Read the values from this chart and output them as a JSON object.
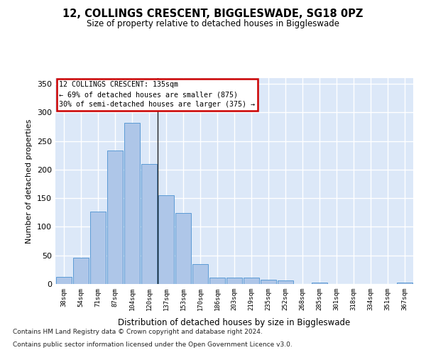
{
  "title": "12, COLLINGS CRESCENT, BIGGLESWADE, SG18 0PZ",
  "subtitle": "Size of property relative to detached houses in Biggleswade",
  "xlabel": "Distribution of detached houses by size in Biggleswade",
  "ylabel": "Number of detached properties",
  "bar_labels": [
    "38sqm",
    "54sqm",
    "71sqm",
    "87sqm",
    "104sqm",
    "120sqm",
    "137sqm",
    "153sqm",
    "170sqm",
    "186sqm",
    "203sqm",
    "219sqm",
    "235sqm",
    "252sqm",
    "268sqm",
    "285sqm",
    "301sqm",
    "318sqm",
    "334sqm",
    "351sqm",
    "367sqm"
  ],
  "bar_values": [
    12,
    46,
    127,
    233,
    282,
    210,
    155,
    124,
    35,
    11,
    11,
    11,
    8,
    6,
    0,
    3,
    0,
    0,
    0,
    0,
    3
  ],
  "bar_color": "#aec6e8",
  "bar_edge_color": "#5b9bd5",
  "background_color": "#dce8f8",
  "grid_color": "#ffffff",
  "annotation_text": "12 COLLINGS CRESCENT: 135sqm\n← 69% of detached houses are smaller (875)\n30% of semi-detached houses are larger (375) →",
  "annotation_box_color": "#ffffff",
  "annotation_box_edge_color": "#cc0000",
  "property_line_x": 5.5,
  "footnote1": "Contains HM Land Registry data © Crown copyright and database right 2024.",
  "footnote2": "Contains public sector information licensed under the Open Government Licence v3.0.",
  "ylim": [
    0,
    360
  ],
  "yticks": [
    0,
    50,
    100,
    150,
    200,
    250,
    300,
    350
  ]
}
